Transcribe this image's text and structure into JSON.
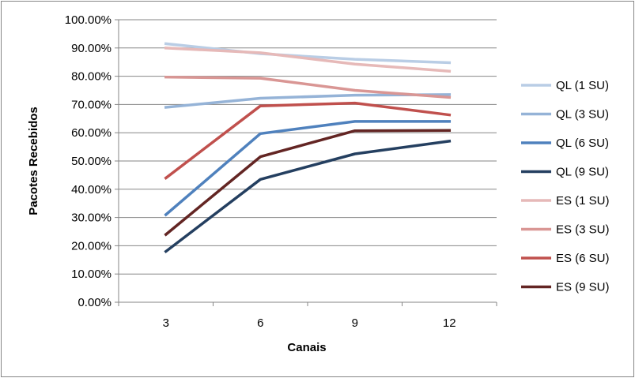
{
  "chart_data": {
    "type": "line",
    "title": "",
    "xlabel": "Canais",
    "ylabel": "Pacotes Recebidos",
    "categories": [
      "3",
      "6",
      "9",
      "12"
    ],
    "ylim": [
      0,
      100
    ],
    "yticks": [
      "0.00%",
      "10.00%",
      "20.00%",
      "30.00%",
      "40.00%",
      "50.00%",
      "60.00%",
      "70.00%",
      "80.00%",
      "90.00%",
      "100.00%"
    ],
    "grid": true,
    "legend_position": "right",
    "series": [
      {
        "name": "QL (1 SU)",
        "color": "#B9CDE5",
        "values": [
          91.5,
          88.0,
          86.0,
          84.8
        ]
      },
      {
        "name": "QL (3 SU)",
        "color": "#95B3D7",
        "values": [
          69.0,
          72.2,
          73.3,
          73.5
        ]
      },
      {
        "name": "QL (6 SU)",
        "color": "#4F81BD",
        "values": [
          31.0,
          59.7,
          64.0,
          64.0
        ]
      },
      {
        "name": "QL (9 SU)",
        "color": "#243F60",
        "values": [
          18.0,
          43.5,
          52.5,
          57.0
        ]
      },
      {
        "name": "ES (1 SU)",
        "color": "#E6B9B8",
        "values": [
          90.0,
          88.3,
          84.3,
          81.8
        ]
      },
      {
        "name": "ES (3 SU)",
        "color": "#D99694",
        "values": [
          79.7,
          79.3,
          75.0,
          72.5
        ]
      },
      {
        "name": "ES (6 SU)",
        "color": "#C0504D",
        "values": [
          44.0,
          69.5,
          70.5,
          66.3
        ]
      },
      {
        "name": "ES (9 SU)",
        "color": "#632523",
        "values": [
          24.0,
          51.5,
          60.7,
          60.8
        ]
      }
    ]
  }
}
